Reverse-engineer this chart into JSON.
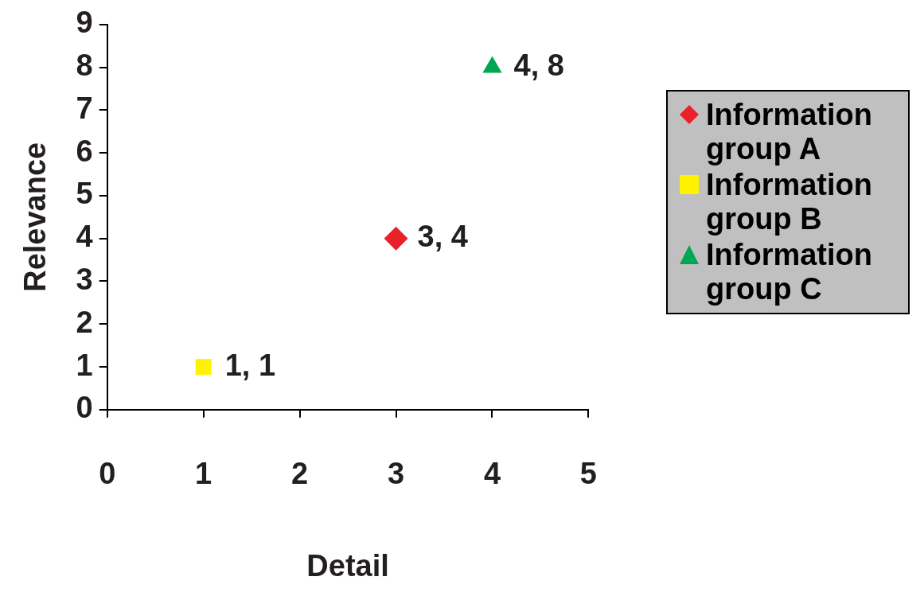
{
  "chart_data": {
    "type": "scatter",
    "xlabel": "Detail",
    "ylabel": "Relevance",
    "xlim": [
      0,
      5
    ],
    "xticks": [
      0,
      1,
      2,
      3,
      4,
      5
    ],
    "ylim": [
      0,
      9
    ],
    "yticks": [
      0,
      1,
      2,
      3,
      4,
      5,
      6,
      7,
      8,
      9
    ],
    "grid": false,
    "legend": "right",
    "series": [
      {
        "name": "Information group A",
        "color": "#e8212a",
        "marker": "diamond",
        "x": [
          3
        ],
        "values": [
          4
        ],
        "value_labels": [
          "3, 4"
        ]
      },
      {
        "name": "Information group B",
        "color": "#fff200",
        "marker": "square",
        "x": [
          1
        ],
        "values": [
          1
        ],
        "value_labels": [
          "1, 1"
        ]
      },
      {
        "name": "Information group C",
        "color": "#00a651",
        "marker": "triangle",
        "x": [
          4
        ],
        "values": [
          8
        ],
        "value_labels": [
          "4, 8"
        ]
      }
    ]
  }
}
